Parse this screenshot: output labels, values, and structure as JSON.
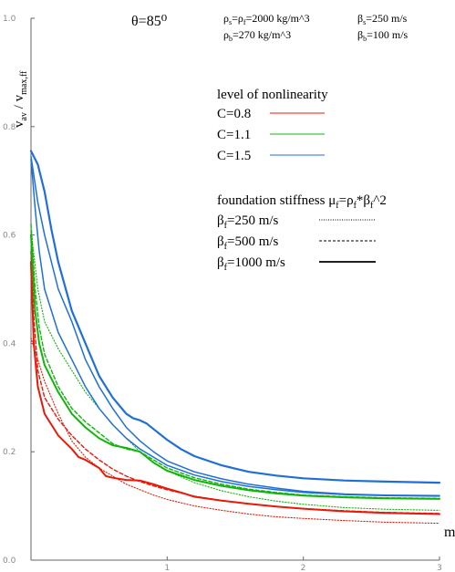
{
  "chart_data": {
    "type": "line",
    "title": "θ=85⁰",
    "ylabel": {
      "main": "v",
      "main_sub": "av",
      "sep": " / v",
      "den_sub": "max,ff"
    },
    "xlabel": "m",
    "xlim": [
      0,
      3
    ],
    "ylim": [
      0,
      1
    ],
    "x_ticks": [
      0,
      1,
      2,
      3
    ],
    "x_tick_labels": [
      "0",
      "1",
      "2",
      "3"
    ],
    "y_ticks": [
      0,
      0.2,
      0.4,
      0.6,
      0.8,
      1.0
    ],
    "y_tick_labels": [
      "0.0",
      "0.2",
      "0.4",
      "0.6",
      "0.8",
      "1.0"
    ],
    "params": {
      "row1_left": {
        "a": "ρ",
        "a_sub": "s",
        "b": "=ρ",
        "b_sub": "f",
        "c": "=2000 kg/m^3"
      },
      "row1_right": {
        "a": "β",
        "a_sub": "s",
        "c": "=250 m/s"
      },
      "row2_left": {
        "a": "ρ",
        "a_sub": "b",
        "c": "=270 kg/m^3"
      },
      "row2_right": {
        "a": "β",
        "a_sub": "b",
        "c": "=100 m/s"
      }
    },
    "legend_nonlinearity": {
      "title": "level of nonlinearity",
      "entries": [
        {
          "label": "C=0.8",
          "color": "#e8190a"
        },
        {
          "label": "C=1.1",
          "color": "#12b40c"
        },
        {
          "label": "C=1.5",
          "color": "#1f6fd8"
        }
      ]
    },
    "legend_stiffness": {
      "title_a": "foundation stiffness μ",
      "title_a_sub": "f",
      "title_b": "=ρ",
      "title_b_sub": "f",
      "title_c": "*β",
      "title_c_sub": "f",
      "title_d": "^2",
      "entries": [
        {
          "sym": "β",
          "sub": "f",
          "rest": "=250 m/s",
          "style": "dotted"
        },
        {
          "sym": "β",
          "sub": "f",
          "rest": "=500 m/s",
          "style": "dashed"
        },
        {
          "sym": "β",
          "sub": "f",
          "rest": "=1000 m/s",
          "style": "solid"
        }
      ]
    },
    "series": [
      {
        "color": "#e8190a",
        "style": "dotted",
        "width": 1.1,
        "points": [
          [
            0.0,
            0.41
          ],
          [
            0.05,
            0.37
          ],
          [
            0.1,
            0.33
          ],
          [
            0.2,
            0.27
          ],
          [
            0.3,
            0.22
          ],
          [
            0.4,
            0.19
          ],
          [
            0.5,
            0.17
          ],
          [
            0.6,
            0.155
          ],
          [
            0.7,
            0.14
          ],
          [
            0.8,
            0.13
          ],
          [
            0.9,
            0.12
          ],
          [
            1.0,
            0.112
          ],
          [
            1.2,
            0.1
          ],
          [
            1.4,
            0.092
          ],
          [
            1.6,
            0.085
          ],
          [
            1.8,
            0.08
          ],
          [
            2.0,
            0.077
          ],
          [
            2.3,
            0.073
          ],
          [
            2.6,
            0.07
          ],
          [
            3.0,
            0.068
          ]
        ]
      },
      {
        "color": "#e8190a",
        "style": "dashed",
        "width": 1.4,
        "points": [
          [
            0.0,
            0.57
          ],
          [
            0.02,
            0.45
          ],
          [
            0.05,
            0.35
          ],
          [
            0.1,
            0.3
          ],
          [
            0.2,
            0.26
          ],
          [
            0.3,
            0.23
          ],
          [
            0.4,
            0.205
          ],
          [
            0.5,
            0.185
          ],
          [
            0.6,
            0.168
          ],
          [
            0.7,
            0.155
          ],
          [
            0.8,
            0.145
          ],
          [
            0.9,
            0.137
          ],
          [
            1.0,
            0.13
          ],
          [
            1.2,
            0.118
          ],
          [
            1.4,
            0.11
          ],
          [
            1.6,
            0.104
          ],
          [
            1.8,
            0.099
          ],
          [
            2.0,
            0.095
          ],
          [
            2.3,
            0.091
          ],
          [
            2.6,
            0.088
          ],
          [
            3.0,
            0.086
          ]
        ]
      },
      {
        "color": "#e8190a",
        "style": "solid",
        "width": 2.0,
        "points": [
          [
            0.0,
            0.55
          ],
          [
            0.02,
            0.4
          ],
          [
            0.05,
            0.32
          ],
          [
            0.1,
            0.27
          ],
          [
            0.15,
            0.25
          ],
          [
            0.2,
            0.23
          ],
          [
            0.3,
            0.205
          ],
          [
            0.35,
            0.19
          ],
          [
            0.4,
            0.185
          ],
          [
            0.5,
            0.17
          ],
          [
            0.55,
            0.155
          ],
          [
            0.6,
            0.152
          ],
          [
            0.7,
            0.148
          ],
          [
            0.8,
            0.147
          ],
          [
            0.9,
            0.14
          ],
          [
            1.0,
            0.132
          ],
          [
            1.1,
            0.125
          ],
          [
            1.2,
            0.117
          ],
          [
            1.4,
            0.11
          ],
          [
            1.6,
            0.104
          ],
          [
            1.8,
            0.099
          ],
          [
            2.0,
            0.095
          ],
          [
            2.3,
            0.09
          ],
          [
            2.6,
            0.087
          ],
          [
            3.0,
            0.085
          ]
        ]
      },
      {
        "color": "#12b40c",
        "style": "dotted",
        "width": 1.1,
        "points": [
          [
            0.0,
            0.61
          ],
          [
            0.05,
            0.5
          ],
          [
            0.1,
            0.44
          ],
          [
            0.2,
            0.39
          ],
          [
            0.3,
            0.35
          ],
          [
            0.4,
            0.31
          ],
          [
            0.5,
            0.28
          ],
          [
            0.6,
            0.25
          ],
          [
            0.7,
            0.225
          ],
          [
            0.8,
            0.2
          ],
          [
            0.9,
            0.18
          ],
          [
            1.0,
            0.165
          ],
          [
            1.2,
            0.143
          ],
          [
            1.4,
            0.128
          ],
          [
            1.6,
            0.117
          ],
          [
            1.8,
            0.109
          ],
          [
            2.0,
            0.103
          ],
          [
            2.3,
            0.097
          ],
          [
            2.6,
            0.094
          ],
          [
            3.0,
            0.092
          ]
        ]
      },
      {
        "color": "#12b40c",
        "style": "dashed",
        "width": 1.4,
        "points": [
          [
            0.0,
            0.62
          ],
          [
            0.03,
            0.5
          ],
          [
            0.06,
            0.43
          ],
          [
            0.1,
            0.38
          ],
          [
            0.2,
            0.32
          ],
          [
            0.3,
            0.28
          ],
          [
            0.4,
            0.255
          ],
          [
            0.5,
            0.235
          ],
          [
            0.6,
            0.215
          ],
          [
            0.7,
            0.205
          ],
          [
            0.8,
            0.2
          ],
          [
            0.9,
            0.185
          ],
          [
            1.0,
            0.17
          ],
          [
            1.2,
            0.152
          ],
          [
            1.4,
            0.14
          ],
          [
            1.6,
            0.131
          ],
          [
            1.8,
            0.125
          ],
          [
            2.0,
            0.12
          ],
          [
            2.3,
            0.117
          ],
          [
            2.6,
            0.115
          ],
          [
            3.0,
            0.114
          ]
        ]
      },
      {
        "color": "#12b40c",
        "style": "solid",
        "width": 2.0,
        "points": [
          [
            0.0,
            0.6
          ],
          [
            0.03,
            0.46
          ],
          [
            0.06,
            0.4
          ],
          [
            0.1,
            0.36
          ],
          [
            0.2,
            0.31
          ],
          [
            0.3,
            0.27
          ],
          [
            0.4,
            0.245
          ],
          [
            0.5,
            0.225
          ],
          [
            0.6,
            0.212
          ],
          [
            0.7,
            0.207
          ],
          [
            0.8,
            0.2
          ],
          [
            0.85,
            0.19
          ],
          [
            0.9,
            0.18
          ],
          [
            1.0,
            0.165
          ],
          [
            1.2,
            0.148
          ],
          [
            1.4,
            0.137
          ],
          [
            1.6,
            0.129
          ],
          [
            1.8,
            0.123
          ],
          [
            2.0,
            0.119
          ],
          [
            2.3,
            0.116
          ],
          [
            2.6,
            0.114
          ],
          [
            3.0,
            0.113
          ]
        ]
      },
      {
        "color": "#1f6fd8",
        "style": "solid",
        "width": 1.5,
        "points": [
          [
            0.0,
            0.74
          ],
          [
            0.03,
            0.65
          ],
          [
            0.06,
            0.57
          ],
          [
            0.1,
            0.5
          ],
          [
            0.2,
            0.42
          ],
          [
            0.3,
            0.37
          ],
          [
            0.4,
            0.32
          ],
          [
            0.5,
            0.28
          ],
          [
            0.6,
            0.25
          ],
          [
            0.7,
            0.225
          ],
          [
            0.8,
            0.205
          ],
          [
            0.9,
            0.19
          ],
          [
            1.0,
            0.175
          ],
          [
            1.2,
            0.157
          ],
          [
            1.4,
            0.145
          ],
          [
            1.6,
            0.136
          ],
          [
            1.8,
            0.13
          ],
          [
            2.0,
            0.125
          ],
          [
            2.3,
            0.121
          ],
          [
            2.6,
            0.119
          ],
          [
            3.0,
            0.118
          ]
        ]
      },
      {
        "color": "#1f6fd8",
        "style": "solid",
        "width": 1.5,
        "points": [
          [
            0.0,
            0.745
          ],
          [
            0.05,
            0.66
          ],
          [
            0.1,
            0.6
          ],
          [
            0.2,
            0.5
          ],
          [
            0.3,
            0.44
          ],
          [
            0.4,
            0.37
          ],
          [
            0.5,
            0.32
          ],
          [
            0.6,
            0.28
          ],
          [
            0.7,
            0.245
          ],
          [
            0.8,
            0.22
          ],
          [
            0.9,
            0.2
          ],
          [
            1.0,
            0.183
          ],
          [
            1.2,
            0.163
          ],
          [
            1.4,
            0.15
          ],
          [
            1.6,
            0.14
          ],
          [
            1.8,
            0.133
          ],
          [
            2.0,
            0.127
          ],
          [
            2.3,
            0.122
          ],
          [
            2.6,
            0.12
          ],
          [
            3.0,
            0.119
          ]
        ]
      },
      {
        "color": "#1f6fd8",
        "style": "solid",
        "width": 2.2,
        "points": [
          [
            0.0,
            0.755
          ],
          [
            0.05,
            0.73
          ],
          [
            0.1,
            0.68
          ],
          [
            0.15,
            0.61
          ],
          [
            0.2,
            0.55
          ],
          [
            0.3,
            0.46
          ],
          [
            0.4,
            0.4
          ],
          [
            0.5,
            0.34
          ],
          [
            0.6,
            0.3
          ],
          [
            0.7,
            0.27
          ],
          [
            0.75,
            0.262
          ],
          [
            0.8,
            0.258
          ],
          [
            0.85,
            0.252
          ],
          [
            0.9,
            0.242
          ],
          [
            1.0,
            0.222
          ],
          [
            1.1,
            0.205
          ],
          [
            1.2,
            0.192
          ],
          [
            1.4,
            0.175
          ],
          [
            1.6,
            0.163
          ],
          [
            1.8,
            0.156
          ],
          [
            2.0,
            0.151
          ],
          [
            2.3,
            0.147
          ],
          [
            2.6,
            0.145
          ],
          [
            3.0,
            0.143
          ]
        ]
      }
    ]
  }
}
